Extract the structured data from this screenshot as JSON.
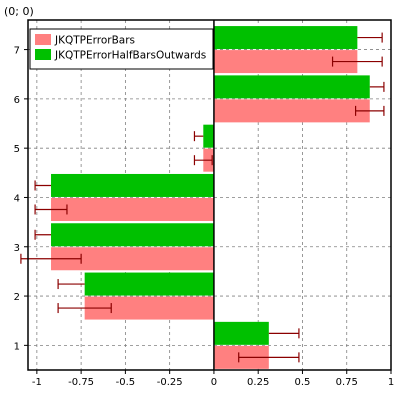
{
  "coord_readout": "(0; 0)",
  "chart_data": {
    "type": "bar",
    "orientation": "horizontal",
    "categories": [
      1,
      2,
      3,
      4,
      5,
      6,
      7
    ],
    "series": [
      {
        "name": "JKQTPErrorBars",
        "color": "#ff8080",
        "values": [
          0.31,
          -0.73,
          -0.92,
          -0.92,
          -0.06,
          0.88,
          0.81
        ],
        "errors": [
          0.17,
          0.15,
          0.17,
          0.09,
          0.05,
          0.08,
          0.14
        ],
        "error_style": "symmetric"
      },
      {
        "name": "JKQTPErrorHalfBarsOutwards",
        "color": "#00c000",
        "values": [
          0.31,
          -0.73,
          -0.92,
          -0.92,
          -0.06,
          0.88,
          0.81
        ],
        "errors": [
          0.17,
          0.15,
          0.09,
          0.09,
          0.05,
          0.08,
          0.14
        ],
        "error_style": "outward-half"
      }
    ],
    "xlim": [
      -1.05,
      1.0
    ],
    "ylim": [
      0.5,
      7.6
    ],
    "xticks": [
      "-1",
      "-0.75",
      "-0.5",
      "-0.25",
      "0",
      "0.25",
      "0.5",
      "0.75",
      "1"
    ],
    "xtick_values": [
      -1,
      -0.75,
      -0.5,
      -0.25,
      0,
      0.25,
      0.5,
      0.75,
      1
    ],
    "yticks": [
      "1",
      "2",
      "3",
      "4",
      "5",
      "6",
      "7"
    ],
    "grid": true,
    "legend_position": "top-left",
    "error_color": "#8b0000"
  }
}
